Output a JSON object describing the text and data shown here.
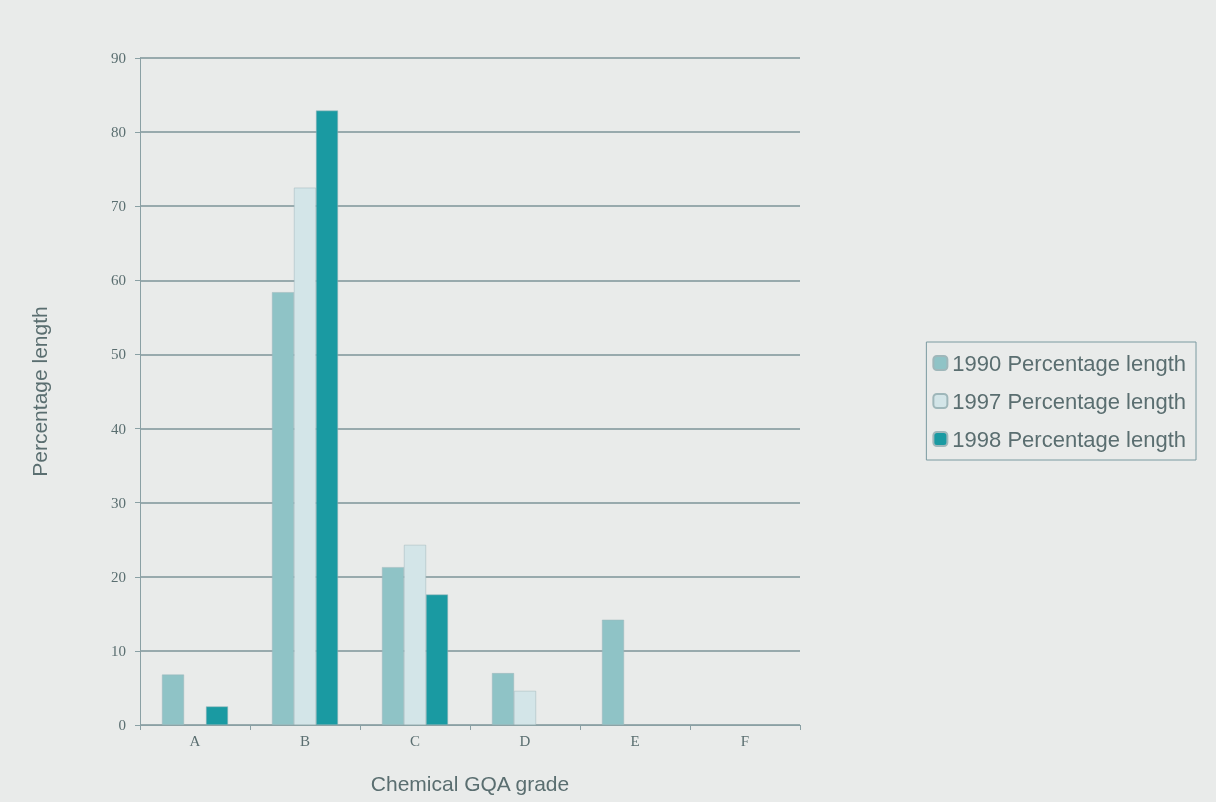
{
  "chart_data": {
    "type": "bar",
    "xlabel": "Chemical GQA grade",
    "ylabel": "Percentage length",
    "categories": [
      "A",
      "B",
      "C",
      "D",
      "E",
      "F"
    ],
    "series": [
      {
        "name": "1990 Percentage length",
        "color": "#8fc3c6",
        "values": [
          6.8,
          58.4,
          21.3,
          7.0,
          14.2,
          null
        ]
      },
      {
        "name": "1997 Percentage length",
        "color": "#d3e5e8",
        "values": [
          null,
          72.5,
          24.3,
          4.6,
          null,
          null
        ]
      },
      {
        "name": "1998 Percentage length",
        "color": "#1a9aa2",
        "values": [
          2.5,
          82.9,
          17.6,
          null,
          null,
          null
        ]
      }
    ],
    "ylim": [
      0,
      90
    ],
    "yticks": [
      0,
      10,
      20,
      30,
      40,
      50,
      60,
      70,
      80,
      90
    ],
    "grid": "y",
    "legend": "right"
  }
}
